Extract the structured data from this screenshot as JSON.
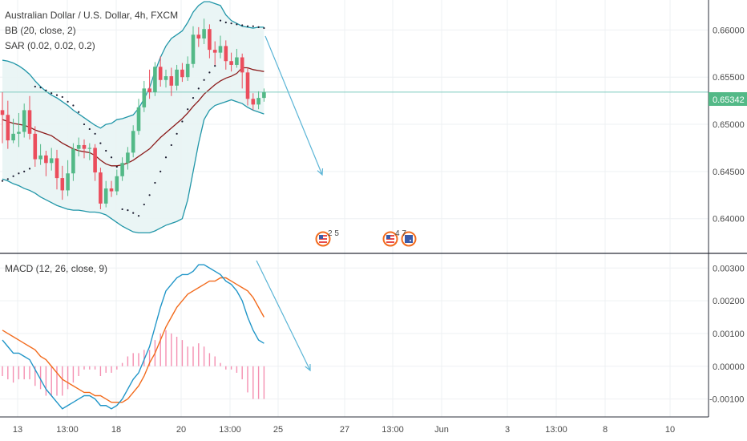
{
  "chart_data": {
    "type": "candlestick",
    "title": "Australian Dollar / U.S. Dollar, 4h, FXCM",
    "indicators": [
      "BB (20, close, 2)",
      "SAR (0.02, 0.02, 0.2)"
    ],
    "last_price": "0.65342",
    "price_axis": {
      "ticks": [
        "0.66000",
        "0.65500",
        "0.65000",
        "0.64500",
        "0.64000"
      ],
      "ylim": [
        0.637,
        0.6625
      ]
    },
    "time_axis": {
      "ticks": [
        "13",
        "13:00",
        "18",
        "20",
        "13:00",
        "25",
        "27",
        "13:00",
        "Jun",
        "3",
        "13:00",
        "8",
        "10"
      ]
    },
    "candles": [
      [
        0.6515,
        0.651,
        0.6534,
        0.648
      ],
      [
        0.651,
        0.6483,
        0.6525,
        0.6474
      ],
      [
        0.6483,
        0.649,
        0.6506,
        0.648
      ],
      [
        0.649,
        0.6492,
        0.6512,
        0.6476
      ],
      [
        0.6492,
        0.6515,
        0.6522,
        0.6486
      ],
      [
        0.6515,
        0.649,
        0.653,
        0.6484
      ],
      [
        0.649,
        0.6463,
        0.6498,
        0.6455
      ],
      [
        0.6463,
        0.6467,
        0.6479,
        0.6457
      ],
      [
        0.6467,
        0.6459,
        0.6472,
        0.6445
      ],
      [
        0.6459,
        0.6464,
        0.6475,
        0.6451
      ],
      [
        0.6464,
        0.6443,
        0.6473,
        0.6431
      ],
      [
        0.6443,
        0.643,
        0.6456,
        0.642
      ],
      [
        0.643,
        0.6448,
        0.6462,
        0.6424
      ],
      [
        0.6448,
        0.6474,
        0.648,
        0.644
      ],
      [
        0.6474,
        0.6478,
        0.6486,
        0.6466
      ],
      [
        0.6478,
        0.6474,
        0.6484,
        0.6464
      ],
      [
        0.6474,
        0.6475,
        0.648,
        0.6462
      ],
      [
        0.6475,
        0.6449,
        0.6479,
        0.644
      ],
      [
        0.6449,
        0.6416,
        0.6454,
        0.641
      ],
      [
        0.6416,
        0.6432,
        0.644,
        0.6412
      ],
      [
        0.6432,
        0.6429,
        0.644,
        0.6423
      ],
      [
        0.6429,
        0.6445,
        0.6452,
        0.6425
      ],
      [
        0.6445,
        0.6459,
        0.6465,
        0.644
      ],
      [
        0.6459,
        0.647,
        0.6476,
        0.6452
      ],
      [
        0.647,
        0.6493,
        0.6499,
        0.6465
      ],
      [
        0.6493,
        0.6518,
        0.6527,
        0.6489
      ],
      [
        0.6518,
        0.6538,
        0.6546,
        0.6513
      ],
      [
        0.6538,
        0.6534,
        0.6558,
        0.6527
      ],
      [
        0.6534,
        0.6561,
        0.6566,
        0.653
      ],
      [
        0.6561,
        0.6547,
        0.6572,
        0.654
      ],
      [
        0.6547,
        0.6551,
        0.6558,
        0.6539
      ],
      [
        0.6551,
        0.6541,
        0.656,
        0.653
      ],
      [
        0.6541,
        0.6558,
        0.6563,
        0.6536
      ],
      [
        0.6558,
        0.655,
        0.6565,
        0.6545
      ],
      [
        0.655,
        0.6564,
        0.6572,
        0.6546
      ],
      [
        0.6564,
        0.6595,
        0.6604,
        0.656
      ],
      [
        0.6595,
        0.6591,
        0.6603,
        0.6582
      ],
      [
        0.6591,
        0.6601,
        0.6612,
        0.6585
      ],
      [
        0.6601,
        0.6579,
        0.6606,
        0.657
      ],
      [
        0.6579,
        0.6576,
        0.6588,
        0.6563
      ],
      [
        0.6576,
        0.6583,
        0.6594,
        0.657
      ],
      [
        0.6583,
        0.6567,
        0.6589,
        0.6558
      ],
      [
        0.6567,
        0.6563,
        0.6576,
        0.6556
      ],
      [
        0.6563,
        0.6571,
        0.658,
        0.656
      ],
      [
        0.6571,
        0.6555,
        0.6575,
        0.6538
      ],
      [
        0.6555,
        0.6527,
        0.656,
        0.652
      ],
      [
        0.6527,
        0.6521,
        0.6533,
        0.6515
      ],
      [
        0.6521,
        0.6528,
        0.6535,
        0.6516
      ],
      [
        0.6528,
        0.6534,
        0.6538,
        0.6524
      ]
    ],
    "bb_upper": [
      0.6568,
      0.6567,
      0.6565,
      0.6562,
      0.6558,
      0.6553,
      0.6546,
      0.654,
      0.6535,
      0.6531,
      0.6528,
      0.6524,
      0.652,
      0.6515,
      0.6511,
      0.6507,
      0.6503,
      0.6499,
      0.6496,
      0.65,
      0.6501,
      0.6505,
      0.6506,
      0.6508,
      0.651,
      0.6517,
      0.6527,
      0.6539,
      0.6556,
      0.6571,
      0.6583,
      0.6591,
      0.6595,
      0.6599,
      0.6608,
      0.6619,
      0.6626,
      0.663,
      0.663,
      0.6628,
      0.6626,
      0.6616,
      0.661,
      0.6607,
      0.6604,
      0.6603,
      0.6602,
      0.6603,
      0.6603
    ],
    "bb_mid": [
      0.6505,
      0.6503,
      0.6501,
      0.65,
      0.6499,
      0.6497,
      0.6494,
      0.6492,
      0.649,
      0.6488,
      0.6484,
      0.648,
      0.6477,
      0.6474,
      0.6472,
      0.6471,
      0.647,
      0.6467,
      0.6462,
      0.6458,
      0.6456,
      0.6456,
      0.6457,
      0.6459,
      0.6462,
      0.6466,
      0.647,
      0.6474,
      0.648,
      0.6486,
      0.6491,
      0.6496,
      0.6501,
      0.6506,
      0.6512,
      0.6519,
      0.6525,
      0.6532,
      0.6537,
      0.6542,
      0.6546,
      0.6549,
      0.6551,
      0.6554,
      0.656,
      0.656,
      0.6558,
      0.6557,
      0.6556
    ],
    "bb_lower": [
      0.6442,
      0.644,
      0.6437,
      0.6435,
      0.6432,
      0.643,
      0.6427,
      0.6423,
      0.642,
      0.6417,
      0.6414,
      0.6412,
      0.641,
      0.6409,
      0.6409,
      0.6408,
      0.6407,
      0.6407,
      0.6406,
      0.6404,
      0.64,
      0.6396,
      0.6392,
      0.6389,
      0.6386,
      0.6385,
      0.6385,
      0.6385,
      0.6387,
      0.639,
      0.6393,
      0.6395,
      0.6397,
      0.64,
      0.642,
      0.645,
      0.648,
      0.6505,
      0.6515,
      0.652,
      0.6522,
      0.6524,
      0.6526,
      0.6524,
      0.6522,
      0.6518,
      0.6515,
      0.6513,
      0.6511
    ],
    "sar": [
      0.644,
      0.6442,
      0.6445,
      0.6448,
      0.645,
      0.6453,
      0.654,
      0.6539,
      0.6536,
      0.6533,
      0.6531,
      0.6529,
      0.6524,
      0.652,
      0.6513,
      0.65,
      0.6495,
      0.649,
      0.648,
      0.6472,
      0.6465,
      0.6455,
      0.641,
      0.6409,
      0.6406,
      0.6403,
      0.6415,
      0.6425,
      0.6438,
      0.645,
      0.6465,
      0.6478,
      0.649,
      0.6503,
      0.6516,
      0.6528,
      0.6538,
      0.6547,
      0.6555,
      0.6562,
      0.661,
      0.6608,
      0.6607,
      0.6606,
      0.6605,
      0.6604,
      0.6604,
      0.6603,
      0.6602
    ],
    "macd": {
      "legend": "MACD (12, 26, close, 9)",
      "ticks": [
        "0.00300",
        "0.00200",
        "0.00100",
        "0.00000",
        "-0.00100"
      ],
      "ylim": [
        -0.0015,
        0.0033
      ],
      "macd_line": [
        0.0008,
        0.0006,
        0.0004,
        0.0004,
        0.0003,
        0.0002,
        -0.0001,
        -0.0004,
        -0.0007,
        -0.0009,
        -0.0011,
        -0.0013,
        -0.0012,
        -0.0011,
        -0.001,
        -0.0009,
        -0.0009,
        -0.001,
        -0.0012,
        -0.0012,
        -0.0013,
        -0.0012,
        -0.001,
        -0.0007,
        -0.0004,
        -0.0002,
        0.0002,
        0.0006,
        0.0012,
        0.0018,
        0.0023,
        0.0025,
        0.0027,
        0.0028,
        0.0028,
        0.0029,
        0.0031,
        0.0031,
        0.003,
        0.0029,
        0.0028,
        0.0026,
        0.0025,
        0.0023,
        0.002,
        0.0015,
        0.0011,
        0.0008,
        0.0007
      ],
      "signal_line": [
        0.0011,
        0.001,
        0.0009,
        0.0008,
        0.0007,
        0.0006,
        0.0005,
        0.0003,
        0.0002,
        0.0,
        -0.0002,
        -0.0004,
        -0.0005,
        -0.0006,
        -0.0007,
        -0.0008,
        -0.0008,
        -0.0009,
        -0.0009,
        -0.001,
        -0.0011,
        -0.0011,
        -0.0011,
        -0.001,
        -0.0008,
        -0.0006,
        -0.0003,
        0.0001,
        0.0004,
        0.0008,
        0.0012,
        0.0015,
        0.0018,
        0.002,
        0.0022,
        0.0023,
        0.0024,
        0.0025,
        0.0026,
        0.0026,
        0.0027,
        0.0027,
        0.0026,
        0.0025,
        0.0024,
        0.0023,
        0.0021,
        0.0018,
        0.0015
      ],
      "histogram": [
        -0.0003,
        -0.0004,
        -0.0005,
        -0.0004,
        -0.0004,
        -0.0004,
        -0.0006,
        -0.0007,
        -0.0009,
        -0.0009,
        -0.0009,
        -0.0009,
        -0.0007,
        -0.0005,
        -0.0003,
        -0.0001,
        -0.0001,
        -0.0001,
        -0.0003,
        -0.0002,
        -0.0002,
        -0.0001,
        0.0001,
        0.0003,
        0.0004,
        0.0004,
        0.0005,
        0.0005,
        0.0008,
        0.001,
        0.0011,
        0.001,
        0.0009,
        0.0008,
        0.0006,
        0.0006,
        0.0007,
        0.0006,
        0.0004,
        0.0003,
        0.0001,
        -0.0001,
        -0.0001,
        -0.0002,
        -0.0004,
        -0.0008,
        -0.001,
        -0.001,
        -0.001
      ]
    },
    "event_markers": [
      {
        "label": "2 5",
        "flags": [
          "us"
        ]
      },
      {
        "label": "4 7",
        "flags": [
          "us",
          "au"
        ]
      }
    ],
    "colors": {
      "up": "#53b987",
      "down": "#eb4d5c",
      "bb": "#2196a8",
      "bb_fill": "#e8f4f4",
      "basis": "#8b1a1a",
      "macd": "#2196c8",
      "signal": "#f26b1d",
      "hist": "#f48fb1",
      "price_line": "#7ecbbf",
      "arrow": "#5bb5d6"
    }
  }
}
